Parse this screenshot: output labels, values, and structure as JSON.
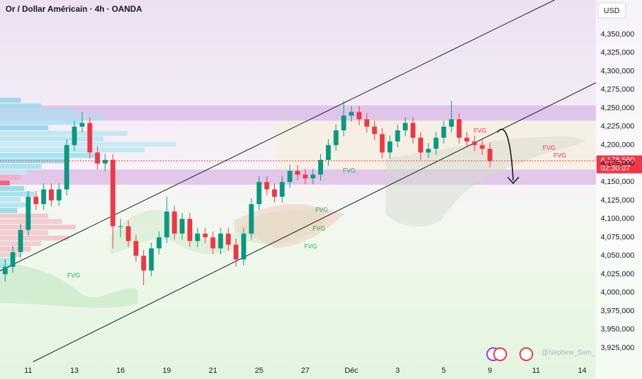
{
  "chart_data": {
    "type": "candlestick",
    "title": "Or / Dollar Américain · 4h · OANDA",
    "currency": "USD",
    "categories": [
      null,
      null,
      null,
      "11",
      null,
      null,
      null,
      null,
      null,
      "13",
      null,
      null,
      null,
      null,
      null,
      "16",
      null,
      null,
      null,
      null,
      null,
      "19",
      null,
      null,
      null,
      null,
      null,
      "21",
      null,
      null,
      null,
      null,
      null,
      "25",
      null,
      null,
      null,
      null,
      null,
      "27",
      null,
      null,
      null,
      null,
      null,
      "Déc",
      null,
      null,
      null,
      null,
      null,
      "3",
      null,
      null,
      null,
      null,
      null,
      "5",
      null,
      null,
      null,
      null,
      null,
      "9",
      null,
      null,
      null,
      null,
      null,
      "11",
      null,
      null,
      null,
      null,
      null,
      "14"
    ],
    "open": [
      4025000,
      4035000,
      4055000,
      4085000,
      4130000,
      4120000,
      4140000,
      4125000,
      4140000,
      4200000,
      4225000,
      4230000,
      4190000,
      4175000,
      4180000,
      4090000,
      4090000,
      4070000,
      4050000,
      4030000,
      4060000,
      4075000,
      4110000,
      4080000,
      4100000,
      4070000,
      4080000,
      4075000,
      4060000,
      4080000,
      4065000,
      4045000,
      4080000,
      4120000,
      4150000,
      4140000,
      4130000,
      4150000,
      4165000,
      4160000,
      4155000,
      4160000,
      4180000,
      4200000,
      4220000,
      4240000,
      4245000,
      4235000,
      4225000,
      4215000,
      4190000,
      4205000,
      4220000,
      4230000,
      4210000,
      4190000,
      4195000,
      4210000,
      4225000,
      4235000,
      4210000,
      4205000,
      4200000,
      4195000,
      null,
      null,
      null,
      null,
      null,
      null,
      null,
      null,
      null,
      null,
      null,
      null
    ],
    "high": [
      4045000,
      4063000,
      4093000,
      4138000,
      4138000,
      4148000,
      4148000,
      4148000,
      4208000,
      4233000,
      4245000,
      4238000,
      4198000,
      4188000,
      4188000,
      4100000,
      4098000,
      4078000,
      4058000,
      4068000,
      4083000,
      4130000,
      4118000,
      4108000,
      4108000,
      4088000,
      4088000,
      4083000,
      4088000,
      4088000,
      4073000,
      4088000,
      4128000,
      4158000,
      4158000,
      4148000,
      4158000,
      4173000,
      4173000,
      4168000,
      4168000,
      4188000,
      4208000,
      4228000,
      4260000,
      4253000,
      4253000,
      4243000,
      4233000,
      4223000,
      4213000,
      4228000,
      4238000,
      4238000,
      4218000,
      4203000,
      4218000,
      4233000,
      4260000,
      4243000,
      4218000,
      4213000,
      4208000,
      4203000,
      null,
      null,
      null,
      null,
      null,
      null,
      null,
      null,
      null,
      null,
      null,
      null
    ],
    "low": [
      4015000,
      4027000,
      4047000,
      4077000,
      4112000,
      4112000,
      4117000,
      4117000,
      4132000,
      4192000,
      4217000,
      4182000,
      4167000,
      4165000,
      4060000,
      4075000,
      4062000,
      4042000,
      4010000,
      4022000,
      4052000,
      4067000,
      4072000,
      4072000,
      4062000,
      4062000,
      4067000,
      4052000,
      4052000,
      4057000,
      4035000,
      4037000,
      4072000,
      4112000,
      4132000,
      4122000,
      4122000,
      4142000,
      4152000,
      4147000,
      4147000,
      4152000,
      4172000,
      4192000,
      4212000,
      4232000,
      4227000,
      4217000,
      4207000,
      4182000,
      4182000,
      4197000,
      4212000,
      4202000,
      4180000,
      4182000,
      4187000,
      4202000,
      4217000,
      4202000,
      4197000,
      4192000,
      4187000,
      4170000,
      null,
      null,
      null,
      null,
      null,
      null,
      null,
      null,
      null,
      null,
      null,
      null
    ],
    "close": [
      4035000,
      4055000,
      4085000,
      4130000,
      4120000,
      4140000,
      4125000,
      4140000,
      4200000,
      4225000,
      4230000,
      4190000,
      4175000,
      4180000,
      4090000,
      4090000,
      4070000,
      4050000,
      4030000,
      4060000,
      4075000,
      4110000,
      4080000,
      4100000,
      4070000,
      4080000,
      4075000,
      4060000,
      4080000,
      4065000,
      4045000,
      4080000,
      4120000,
      4150000,
      4140000,
      4130000,
      4150000,
      4165000,
      4160000,
      4155000,
      4160000,
      4180000,
      4200000,
      4220000,
      4240000,
      4245000,
      4235000,
      4225000,
      4215000,
      4190000,
      4205000,
      4220000,
      4230000,
      4210000,
      4190000,
      4195000,
      4210000,
      4225000,
      4235000,
      4210000,
      4205000,
      4200000,
      4195000,
      4178560,
      null,
      null,
      null,
      null,
      null,
      null,
      null,
      null,
      null,
      null,
      null,
      null
    ],
    "up_color": "#089981",
    "down_color": "#f23645",
    "ylim": [
      3906300,
      4396700
    ],
    "yticks": [
      {
        "value": 3925000,
        "label": "3,925,000"
      },
      {
        "value": 3950000,
        "label": "3,950,000"
      },
      {
        "value": 3975000,
        "label": "3,975,000"
      },
      {
        "value": 4000000,
        "label": "4,000,000"
      },
      {
        "value": 4025000,
        "label": "4,025,000"
      },
      {
        "value": 4050000,
        "label": "4,050,000"
      },
      {
        "value": 4075000,
        "label": "4,075,000"
      },
      {
        "value": 4100000,
        "label": "4,100,000"
      },
      {
        "value": 4125000,
        "label": "4,125,000"
      },
      {
        "value": 4150000,
        "label": "4,150,000"
      },
      {
        "value": 4175000,
        "label": "4,175,000"
      },
      {
        "value": 4200000,
        "label": "4,200,000"
      },
      {
        "value": 4225000,
        "label": "4,225,000"
      },
      {
        "value": 4250000,
        "label": "4,250,000"
      },
      {
        "value": 4275000,
        "label": "4,275,000"
      },
      {
        "value": 4300000,
        "label": "4,300,000"
      },
      {
        "value": 4325000,
        "label": "4,325,000"
      },
      {
        "value": 4350000,
        "label": "4,350,000"
      }
    ],
    "grid": false,
    "last_price": {
      "value": 4178560,
      "label": "4,178,560"
    },
    "countdown": "02:30:07",
    "annotations": [
      "FVG",
      "FVG",
      "FVG",
      "FVG",
      "FVG",
      "FVG",
      "FVG",
      "FVG"
    ],
    "watermark": "@Nephew_Sam_"
  }
}
